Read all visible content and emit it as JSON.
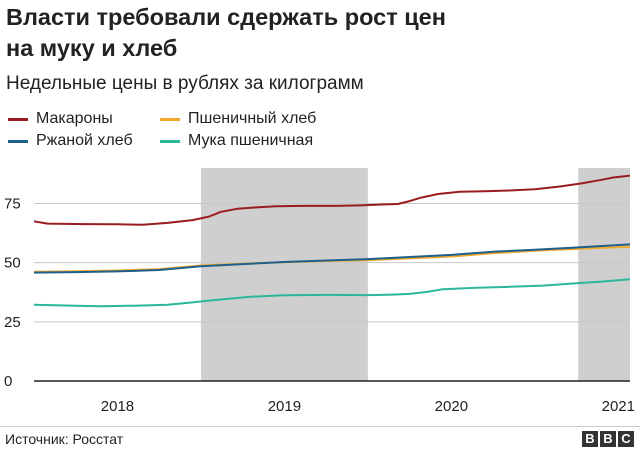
{
  "title_lines": [
    "Власти требовали сдержать рост цен",
    "на муку и хлеб"
  ],
  "subtitle": "Недельные цены в рублях за килограмм",
  "legend": [
    {
      "label": "Макароны",
      "color": "#9b1c1f"
    },
    {
      "label": "Пшеничный хлеб",
      "color": "#f0a82e"
    },
    {
      "label": "Ржаной хлеб",
      "color": "#1f5f8b"
    },
    {
      "label": "Мука пшеничная",
      "color": "#2bb89a"
    }
  ],
  "source": "Источник: Росстат",
  "logo": [
    "B",
    "B",
    "C"
  ],
  "chart_data": {
    "type": "line",
    "title": "Власти требовали сдержать рост цен на муку и хлеб",
    "subtitle": "Недельные цены в рублях за килограмм",
    "xlabel": "",
    "ylabel": "",
    "xlim": [
      2017.5,
      2021.07
    ],
    "ylim": [
      0,
      90
    ],
    "yticks": [
      0,
      25,
      50,
      75
    ],
    "xtick_labels": [
      {
        "label": "2018",
        "x": 2018.0
      },
      {
        "label": "2019",
        "x": 2019.0
      },
      {
        "label": "2020",
        "x": 2020.0
      },
      {
        "label": "2021",
        "x": 2021.0
      }
    ],
    "shaded_ranges": [
      [
        2018.5,
        2019.5
      ],
      [
        2020.76,
        2021.07
      ]
    ],
    "grid": true,
    "series": [
      {
        "name": "Макароны",
        "color": "#9b1c1f",
        "points": [
          [
            2017.5,
            67.5
          ],
          [
            2017.58,
            66.5
          ],
          [
            2017.8,
            66.3
          ],
          [
            2018.0,
            66.2
          ],
          [
            2018.15,
            66.0
          ],
          [
            2018.3,
            66.8
          ],
          [
            2018.45,
            68.0
          ],
          [
            2018.55,
            69.5
          ],
          [
            2018.62,
            71.5
          ],
          [
            2018.72,
            72.8
          ],
          [
            2018.82,
            73.3
          ],
          [
            2018.95,
            73.8
          ],
          [
            2019.1,
            74.0
          ],
          [
            2019.3,
            74.0
          ],
          [
            2019.45,
            74.2
          ],
          [
            2019.55,
            74.5
          ],
          [
            2019.68,
            74.8
          ],
          [
            2019.75,
            76.0
          ],
          [
            2019.82,
            77.5
          ],
          [
            2019.92,
            79.0
          ],
          [
            2020.05,
            80.0
          ],
          [
            2020.2,
            80.2
          ],
          [
            2020.35,
            80.5
          ],
          [
            2020.5,
            81.0
          ],
          [
            2020.65,
            82.2
          ],
          [
            2020.78,
            83.5
          ],
          [
            2020.9,
            85.0
          ],
          [
            2020.97,
            86.0
          ],
          [
            2021.07,
            86.8
          ]
        ]
      },
      {
        "name": "Пшеничный хлеб",
        "color": "#f0a82e",
        "points": [
          [
            2017.5,
            46.2
          ],
          [
            2017.75,
            46.4
          ],
          [
            2018.0,
            46.7
          ],
          [
            2018.25,
            47.3
          ],
          [
            2018.5,
            48.8
          ],
          [
            2018.75,
            49.6
          ],
          [
            2019.0,
            50.2
          ],
          [
            2019.25,
            50.7
          ],
          [
            2019.5,
            51.1
          ],
          [
            2019.75,
            51.8
          ],
          [
            2020.0,
            52.6
          ],
          [
            2020.25,
            54.0
          ],
          [
            2020.5,
            55.0
          ],
          [
            2020.75,
            55.8
          ],
          [
            2021.07,
            56.7
          ]
        ]
      },
      {
        "name": "Ржаной хлеб",
        "color": "#1f5f8b",
        "points": [
          [
            2017.5,
            45.8
          ],
          [
            2017.75,
            46.0
          ],
          [
            2018.0,
            46.3
          ],
          [
            2018.25,
            46.9
          ],
          [
            2018.5,
            48.5
          ],
          [
            2018.75,
            49.4
          ],
          [
            2019.0,
            50.3
          ],
          [
            2019.25,
            50.9
          ],
          [
            2019.5,
            51.5
          ],
          [
            2019.75,
            52.4
          ],
          [
            2020.0,
            53.3
          ],
          [
            2020.25,
            54.6
          ],
          [
            2020.5,
            55.5
          ],
          [
            2020.75,
            56.4
          ],
          [
            2021.07,
            57.7
          ]
        ]
      },
      {
        "name": "Мука пшеничная",
        "color": "#2bb89a",
        "points": [
          [
            2017.5,
            32.2
          ],
          [
            2017.75,
            31.8
          ],
          [
            2017.9,
            31.6
          ],
          [
            2018.1,
            31.8
          ],
          [
            2018.3,
            32.2
          ],
          [
            2018.45,
            33.2
          ],
          [
            2018.6,
            34.3
          ],
          [
            2018.8,
            35.6
          ],
          [
            2019.0,
            36.2
          ],
          [
            2019.25,
            36.4
          ],
          [
            2019.5,
            36.3
          ],
          [
            2019.65,
            36.5
          ],
          [
            2019.75,
            36.8
          ],
          [
            2019.85,
            37.6
          ],
          [
            2019.95,
            38.8
          ],
          [
            2020.15,
            39.4
          ],
          [
            2020.35,
            39.8
          ],
          [
            2020.55,
            40.3
          ],
          [
            2020.75,
            41.3
          ],
          [
            2020.9,
            42.0
          ],
          [
            2021.07,
            43.0
          ]
        ]
      }
    ]
  }
}
